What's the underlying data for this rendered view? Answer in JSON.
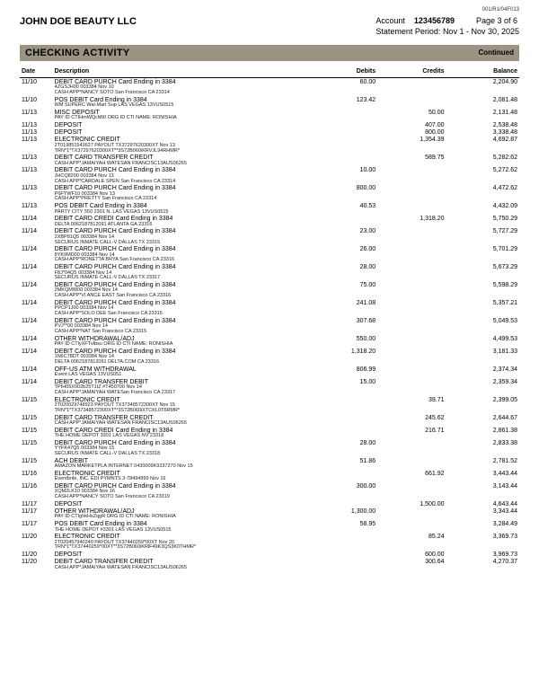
{
  "meta": {
    "topCode": "001/R1/04F013",
    "company": "JOHN DOE BEAUTY LLC",
    "accountLabel": "Account",
    "accountNumber": "123456789",
    "pageLabel": "Page 3 of 6",
    "periodLabel": "Statement Period:",
    "period": "Nov 1 - Nov 30, 2025",
    "sectionTitle": "CHECKING ACTIVITY",
    "continued": "Continued"
  },
  "columns": {
    "date": "Date",
    "desc": "Description",
    "debits": "Debits",
    "credits": "Credits",
    "balance": "Balance"
  },
  "rows": [
    {
      "date": "11/10",
      "main": "DEBIT CARD PURCH Card Ending in 3384",
      "sub": "4ZGSJH00                      003384 Nov 10\nCASH APP*NANCY SOTO  San Francisco CA 23314",
      "debit": "60.00",
      "credit": "",
      "balance": "2,204.90"
    },
    {
      "date": "11/10",
      "main": "POS DEBIT       Card Ending in 3384",
      "sub": "WM SUPERC Wal-Mart Sup LAS VEGAS  13VUS0515",
      "debit": "123.42",
      "credit": "",
      "balance": "2,081.48"
    },
    {
      "date": "11/13",
      "main": "MISC DEPOSIT",
      "sub": "PAY ID CTIHmWQcMt0 ORG ID CTI NAME: RONISHIA",
      "debit": "",
      "credit": "50.00",
      "balance": "2,131.48"
    },
    {
      "date": "11/13",
      "main": "DEPOSIT",
      "sub": "",
      "debit": "",
      "credit": "407.00",
      "balance": "2,538.48"
    },
    {
      "date": "11/13",
      "main": "DEPOSIT",
      "sub": "",
      "debit": "",
      "credit": "800.00",
      "balance": "3,338.48"
    },
    {
      "date": "11/13",
      "main": "ELECTRONIC CREDIT",
      "sub": "2T019851543627 PAYOUT   TX37297620300XT Nov 13\nTRN*1*TX37297620300XT**3S72B060iKRVJL94RHMR*",
      "debit": "",
      "credit": "1,354.39",
      "balance": "4,692.87"
    },
    {
      "date": "11/13",
      "main": "DEBIT CARD TRANSFER CREDIT",
      "sub": "CASH APP*JAMAIYAH WATESAN FRANCISC13AUS06265",
      "debit": "",
      "credit": "589.75",
      "balance": "5,282.62"
    },
    {
      "date": "11/13",
      "main": "DEBIT CARD PURCH Card Ending in 3384",
      "sub": "JHCQ8200                      003384 Nov 13\nCASH APP*CARDALE SPEN San Francisco CA 23314",
      "debit": "10.00",
      "credit": "",
      "balance": "5,272.62"
    },
    {
      "date": "11/13",
      "main": "DEBIT CARD PURCH Card Ending in 3384",
      "sub": "P6FYWF10                      003384 Nov 13\nCASH APP*PRETTY      San Francisco CA 23314",
      "debit": "800.00",
      "credit": "",
      "balance": "4,472.62"
    },
    {
      "date": "11/13",
      "main": "POS DEBIT       Card Ending in 3384",
      "sub": "PARTY CITY 550 2301 N. LAS VEGAS  13VUS0515",
      "debit": "40.53",
      "credit": "",
      "balance": "4,432.09"
    },
    {
      "date": "11/14",
      "main": "DEBIT CARD CREDI Card Ending in 3384",
      "sub": "DELTA  0062187812091 ATLANTA     GA 23316",
      "debit": "",
      "credit": "1,318.20",
      "balance": "5,750.29"
    },
    {
      "date": "11/14",
      "main": "DEBIT CARD PURCH Card Ending in 3384",
      "sub": "2XBP81Q5                      003384 Nov 14\nSECURUS INMATE CALL-V DALLAS     TX 23315",
      "debit": "23.00",
      "credit": "",
      "balance": "5,727.29"
    },
    {
      "date": "11/14",
      "main": "DEBIT CARD PURCH Card Ending in 3384",
      "sub": "8YK9MD00                      003384 Nov 14\nCASH APP*RONETTA BRYA San Francisco CA 23316",
      "debit": "26.00",
      "credit": "",
      "balance": "5,701.29"
    },
    {
      "date": "11/14",
      "main": "DEBIT CARD PURCH Card Ending in 3384",
      "sub": "F8J*04Q5                      003384 Nov 14\nSECURUS INMATE CALL-V DALLAS     TX 23317",
      "debit": "28.00",
      "credit": "",
      "balance": "5,673.29"
    },
    {
      "date": "11/14",
      "main": "DEBIT CARD PURCH Card Ending in 3384",
      "sub": "2MKQMW00                      003384 Nov 14\nCASH APP*VI ANCE EAST San Francisco CA 23316",
      "debit": "75.00",
      "credit": "",
      "balance": "5,598.29"
    },
    {
      "date": "11/14",
      "main": "DEBIT CARD PURCH Card Ending in 3384",
      "sub": "PPCP1J00                      003384 Nov 14\nCASH APP*SOLO DEE    San Francisco CA 23315",
      "debit": "241.08",
      "credit": "",
      "balance": "5,357.21"
    },
    {
      "date": "11/14",
      "main": "DEBIT CARD PURCH Card Ending in 3384",
      "sub": "PVJ**00                       003384 Nov 14\nCASH APP*NAT         San Francisco CA 23315",
      "debit": "307.68",
      "credit": "",
      "balance": "5,049.53"
    },
    {
      "date": "11/14",
      "main": "OTHER WITHDRAWAL/ADJ",
      "sub": "PAY ID CTlyXFTvlbsu ORG ID CTI NAME: RONISHIA",
      "debit": "550.00",
      "credit": "",
      "balance": "4,499.53"
    },
    {
      "date": "11/14",
      "main": "DEBIT CARD PURCH Card Ending in 3384",
      "sub": "1N6C78DT                      003384 Nov 14\nDELTA  0062187812091 DELTA.COM   CA 23316",
      "debit": "1,318.20",
      "credit": "",
      "balance": "3,181.33"
    },
    {
      "date": "11/14",
      "main": "OFF-US ATM WITHDRAWAL",
      "sub": "Event               LAS VEGAS  13VUS051",
      "debit": "806.99",
      "credit": "",
      "balance": "2,374.34"
    },
    {
      "date": "11/14",
      "main": "DEBIT CARD TRANSFER DEBIT",
      "sub": "TPIH05X002b25T1tZ          #T450700 Nov 14\nCASH APP*JAMAIYAH WATESan Francisco CA 23317",
      "debit": "15.00",
      "credit": "",
      "balance": "2,359.34"
    },
    {
      "date": "11/15",
      "main": "ELECTRONIC CREDIT",
      "sub": "2T020029748923 PAYOUT   TX37348572300XT Nov 15\nTRN*1*TX37348572300XT**3S72B060iXTCKL0T6RMR*",
      "debit": "",
      "credit": "39.71",
      "balance": "2,399.05"
    },
    {
      "date": "11/15",
      "main": "DEBIT CARD TRANSFER CREDIT",
      "sub": "CASH APP*JAMAIYAH WATESAN FRANCISC13AUS06265",
      "debit": "",
      "credit": "245.62",
      "balance": "2,644.67"
    },
    {
      "date": "11/15",
      "main": "DEBIT CARD CREDI Card Ending in 3384",
      "sub": "THE HOME DEPOT 3301  LAS VEGAS   NV 23318",
      "debit": "",
      "credit": "216.71",
      "balance": "2,861.38"
    },
    {
      "date": "11/15",
      "main": "DEBIT CARD PURCH Card Ending in 3384",
      "sub": "YYFK47Q5                      003384 Nov 15\nSECURUS INMATE CALL-V DALLAS     TX 23318",
      "debit": "28.00",
      "credit": "",
      "balance": "2,833.38"
    },
    {
      "date": "11/15",
      "main": "ACH DEBIT",
      "sub": "AMAZON MARKETPLA INTERNET  0430009K9237270 Nov 15",
      "debit": "51.86",
      "credit": "",
      "balance": "2,781.52"
    },
    {
      "date": "11/16",
      "main": "ELECTRONIC CREDIT",
      "sub": "Eventbrite, INC. EDI PYMNTS 3-78494999    Nov 16",
      "debit": "",
      "credit": "661.92",
      "balance": "3,443.44"
    },
    {
      "date": "11/16",
      "main": "DEBIT CARD PURCH Card Ending in 3384",
      "sub": "XQM2LK10                      003384 Nov 16\nCASH APP*NANCY SOTO  San Francisco CA 23319",
      "debit": "300.00",
      "credit": "",
      "balance": "3,143.44"
    },
    {
      "date": "11/17",
      "main": "DEPOSIT",
      "sub": "",
      "debit": "",
      "credit": "1,500.00",
      "balance": "4,643.44"
    },
    {
      "date": "11/17",
      "main": "OTHER WITHDRAWAL/ADJ",
      "sub": "PAY ID CTIghkHxZqgR ORG ID CTI NAME: RONISHIA",
      "debit": "1,300.00",
      "credit": "",
      "balance": "3,343.44"
    },
    {
      "date": "11/17",
      "main": "POS DEBIT       Card Ending in 3384",
      "sub": "THE HOME DEPOT #3301 LAS VEGAS  13VUS0515",
      "debit": "58.95",
      "credit": "",
      "balance": "3,284.49"
    },
    {
      "date": "11/20",
      "main": "ELECTRONIC CREDIT",
      "sub": "2T020457940240 PAYOUT   TX37440259*00XT Nov 20\nTRN*1*TX37440259*00XT**3S72B060iKRlF49K3QS3K0THMR*",
      "debit": "",
      "credit": "85.24",
      "balance": "3,369.73"
    },
    {
      "date": "11/20",
      "main": "DEPOSIT",
      "sub": "",
      "debit": "",
      "credit": "600.00",
      "balance": "3,969.73"
    },
    {
      "date": "11/20",
      "main": "DEBIT CARD TRANSFER CREDIT",
      "sub": "CASH APP*JAMAIYAH WATESAN FRANCISC13AUS06265",
      "debit": "",
      "credit": "300.64",
      "balance": "4,270.37"
    }
  ]
}
